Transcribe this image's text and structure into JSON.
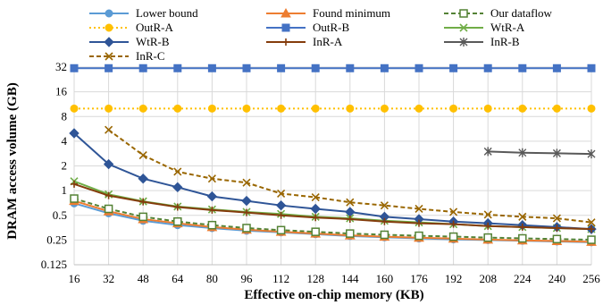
{
  "chart_data": {
    "type": "line",
    "xlabel": "Effective on-chip memory (KB)",
    "ylabel": "DRAM access volume (GB)",
    "y_scale": "log2",
    "ylim": [
      0.125,
      32
    ],
    "y_ticks": [
      "0.125",
      "0.25",
      "0.5",
      "1",
      "2",
      "4",
      "8",
      "16",
      "32"
    ],
    "x": [
      16,
      32,
      48,
      64,
      80,
      96,
      112,
      128,
      144,
      160,
      176,
      192,
      208,
      224,
      240,
      256
    ],
    "grid": true,
    "legend_position": "top",
    "series": [
      {
        "name": "Lower bound",
        "color": "#5B9BD5",
        "marker": "circle",
        "dash": "",
        "values": [
          0.7,
          0.53,
          0.43,
          0.38,
          0.35,
          0.325,
          0.31,
          0.295,
          0.28,
          0.27,
          0.262,
          0.255,
          0.25,
          0.245,
          0.24,
          0.235
        ]
      },
      {
        "name": "Found minimum",
        "color": "#ED7D31",
        "marker": "triangle",
        "dash": "",
        "values": [
          0.75,
          0.56,
          0.45,
          0.4,
          0.36,
          0.335,
          0.315,
          0.3,
          0.285,
          0.275,
          0.267,
          0.26,
          0.253,
          0.248,
          0.243,
          0.238
        ]
      },
      {
        "name": "Our dataflow",
        "color": "#548235",
        "marker": "square-open",
        "dash": "5,3",
        "values": [
          0.8,
          0.6,
          0.48,
          0.42,
          0.38,
          0.35,
          0.33,
          0.315,
          0.3,
          0.29,
          0.282,
          0.275,
          0.268,
          0.262,
          0.257,
          0.252
        ]
      },
      {
        "name": "OutR-A",
        "color": "#FFC000",
        "marker": "circle",
        "dash": "2,3",
        "values": [
          10,
          10,
          10,
          10,
          10,
          10,
          10,
          10,
          10,
          10,
          10,
          10,
          10,
          10,
          10,
          10
        ]
      },
      {
        "name": "OutR-B",
        "color": "#4472C4",
        "marker": "square",
        "dash": "",
        "values": [
          31,
          31,
          31,
          31,
          31,
          31,
          31,
          31,
          31,
          31,
          31,
          31,
          31,
          31,
          31,
          31
        ]
      },
      {
        "name": "WtR-A",
        "color": "#70AD47",
        "marker": "x",
        "dash": "",
        "values": [
          1.3,
          0.9,
          0.74,
          0.64,
          0.59,
          0.55,
          0.52,
          0.48,
          0.46,
          0.43,
          0.41,
          0.39,
          0.37,
          0.36,
          0.35,
          0.34
        ]
      },
      {
        "name": "WtR-B",
        "color": "#2F5597",
        "marker": "diamond",
        "dash": "",
        "values": [
          5.0,
          2.1,
          1.4,
          1.1,
          0.85,
          0.75,
          0.66,
          0.6,
          0.55,
          0.48,
          0.45,
          0.42,
          0.4,
          0.38,
          0.36,
          0.34
        ]
      },
      {
        "name": "InR-A",
        "color": "#843C0C",
        "marker": "plus",
        "dash": "",
        "values": [
          1.2,
          0.87,
          0.73,
          0.63,
          0.58,
          0.54,
          0.5,
          0.47,
          0.45,
          0.42,
          0.4,
          0.39,
          0.37,
          0.36,
          0.35,
          0.34
        ]
      },
      {
        "name": "InR-B",
        "color": "#595959",
        "marker": "star",
        "dash": "",
        "values": [
          null,
          null,
          null,
          null,
          null,
          null,
          null,
          null,
          null,
          null,
          null,
          null,
          3.0,
          2.9,
          2.85,
          2.8
        ]
      },
      {
        "name": "InR-C",
        "color": "#996600",
        "marker": "x",
        "dash": "5,3",
        "values": [
          null,
          5.5,
          2.7,
          1.7,
          1.4,
          1.25,
          0.92,
          0.83,
          0.72,
          0.66,
          0.6,
          0.55,
          0.51,
          0.48,
          0.46,
          0.41
        ]
      }
    ]
  }
}
